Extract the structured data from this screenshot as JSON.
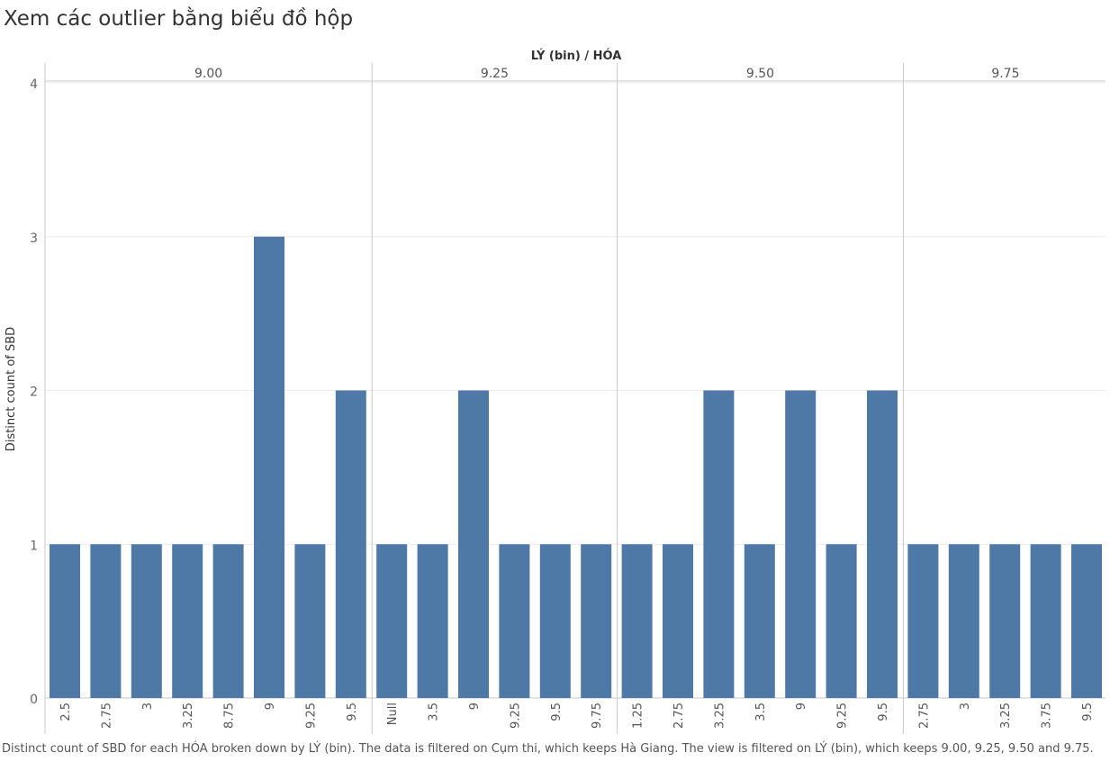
{
  "page": {
    "title": "Xem các outlier bằng biểu đồ hộp",
    "caption": "Distinct count of SBD for each HÓA broken down by LÝ (bin). The data is filtered on Cụm thi, which keeps Hà Giang. The view is filtered on LÝ (bin), which keeps 9.00, 9.25, 9.50 and 9.75."
  },
  "chart_data": {
    "type": "bar",
    "title": "Xem các outlier bằng biểu đồ hộp",
    "column_header_title": "LÝ (bin)  /  HÓA",
    "ylabel": "Distinct count of SBD",
    "ylim": [
      0,
      4
    ],
    "yticks": [
      0,
      1,
      2,
      3,
      4
    ],
    "grid": true,
    "bar_color": "#4e79a7",
    "panels": [
      {
        "label": "9.00",
        "categories": [
          "2.5",
          "2.75",
          "3",
          "3.25",
          "8.75",
          "9",
          "9.25",
          "9.5"
        ],
        "values": [
          1,
          1,
          1,
          1,
          1,
          3,
          1,
          2
        ]
      },
      {
        "label": "9.25",
        "categories": [
          "Null",
          "3.5",
          "9",
          "9.25",
          "9.5",
          "9.75"
        ],
        "values": [
          1,
          1,
          2,
          1,
          1,
          1
        ]
      },
      {
        "label": "9.50",
        "categories": [
          "1.25",
          "2.75",
          "3.25",
          "3.5",
          "9",
          "9.25",
          "9.5"
        ],
        "values": [
          1,
          1,
          2,
          1,
          2,
          1,
          2
        ]
      },
      {
        "label": "9.75",
        "categories": [
          "2.75",
          "3",
          "3.25",
          "3.75",
          "9.5"
        ],
        "values": [
          1,
          1,
          1,
          1,
          1
        ]
      }
    ]
  }
}
